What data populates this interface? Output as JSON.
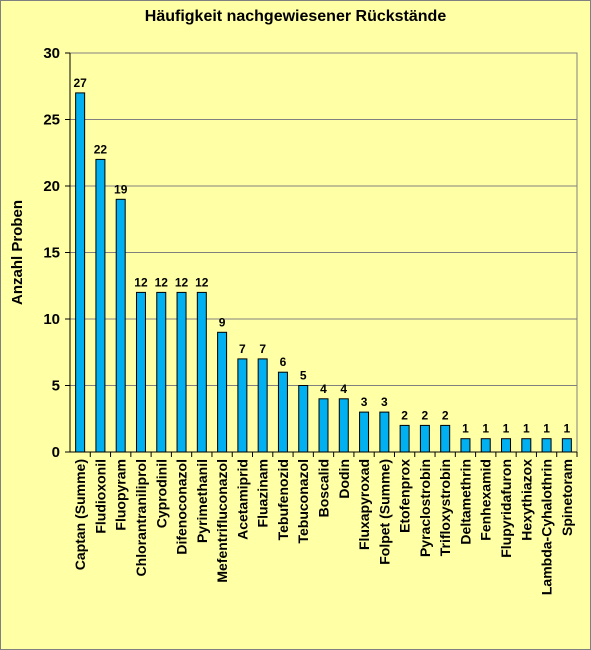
{
  "chart_data": {
    "type": "bar",
    "title": "Häufigkeit nachgewiesener Rückstände",
    "xlabel": "",
    "ylabel": "Anzahl Proben",
    "ylim": [
      0,
      30
    ],
    "yticks": [
      0,
      5,
      10,
      15,
      20,
      25,
      30
    ],
    "grid": true,
    "legend": "none",
    "bar_color": "#00b0f0",
    "background_color": "#ffffa6",
    "categories": [
      "Captan (Summe)",
      "Fludioxonil",
      "Fluopyram",
      "Chlorantraniliprol",
      "Cyprodinil",
      "Difenoconazol",
      "Pyrimethanil",
      "Mefentrifluconazol",
      "Acetamiprid",
      "Fluazinam",
      "Tebufenozid",
      "Tebuconazol",
      "Boscalid",
      "Dodin",
      "Fluxapyroxad",
      "Folpet (Summe)",
      "Etofenprox",
      "Pyraclostrobin",
      "Trifloxystrobin",
      "Deltamethrin",
      "Fenhexamid",
      "Flupyridafuron",
      "Hexythiazox",
      "Lambda-Cyhalothrin",
      "Spinetoram"
    ],
    "values": [
      27,
      22,
      19,
      12,
      12,
      12,
      12,
      9,
      7,
      7,
      6,
      5,
      4,
      4,
      3,
      3,
      2,
      2,
      2,
      1,
      1,
      1,
      1,
      1,
      1
    ]
  }
}
